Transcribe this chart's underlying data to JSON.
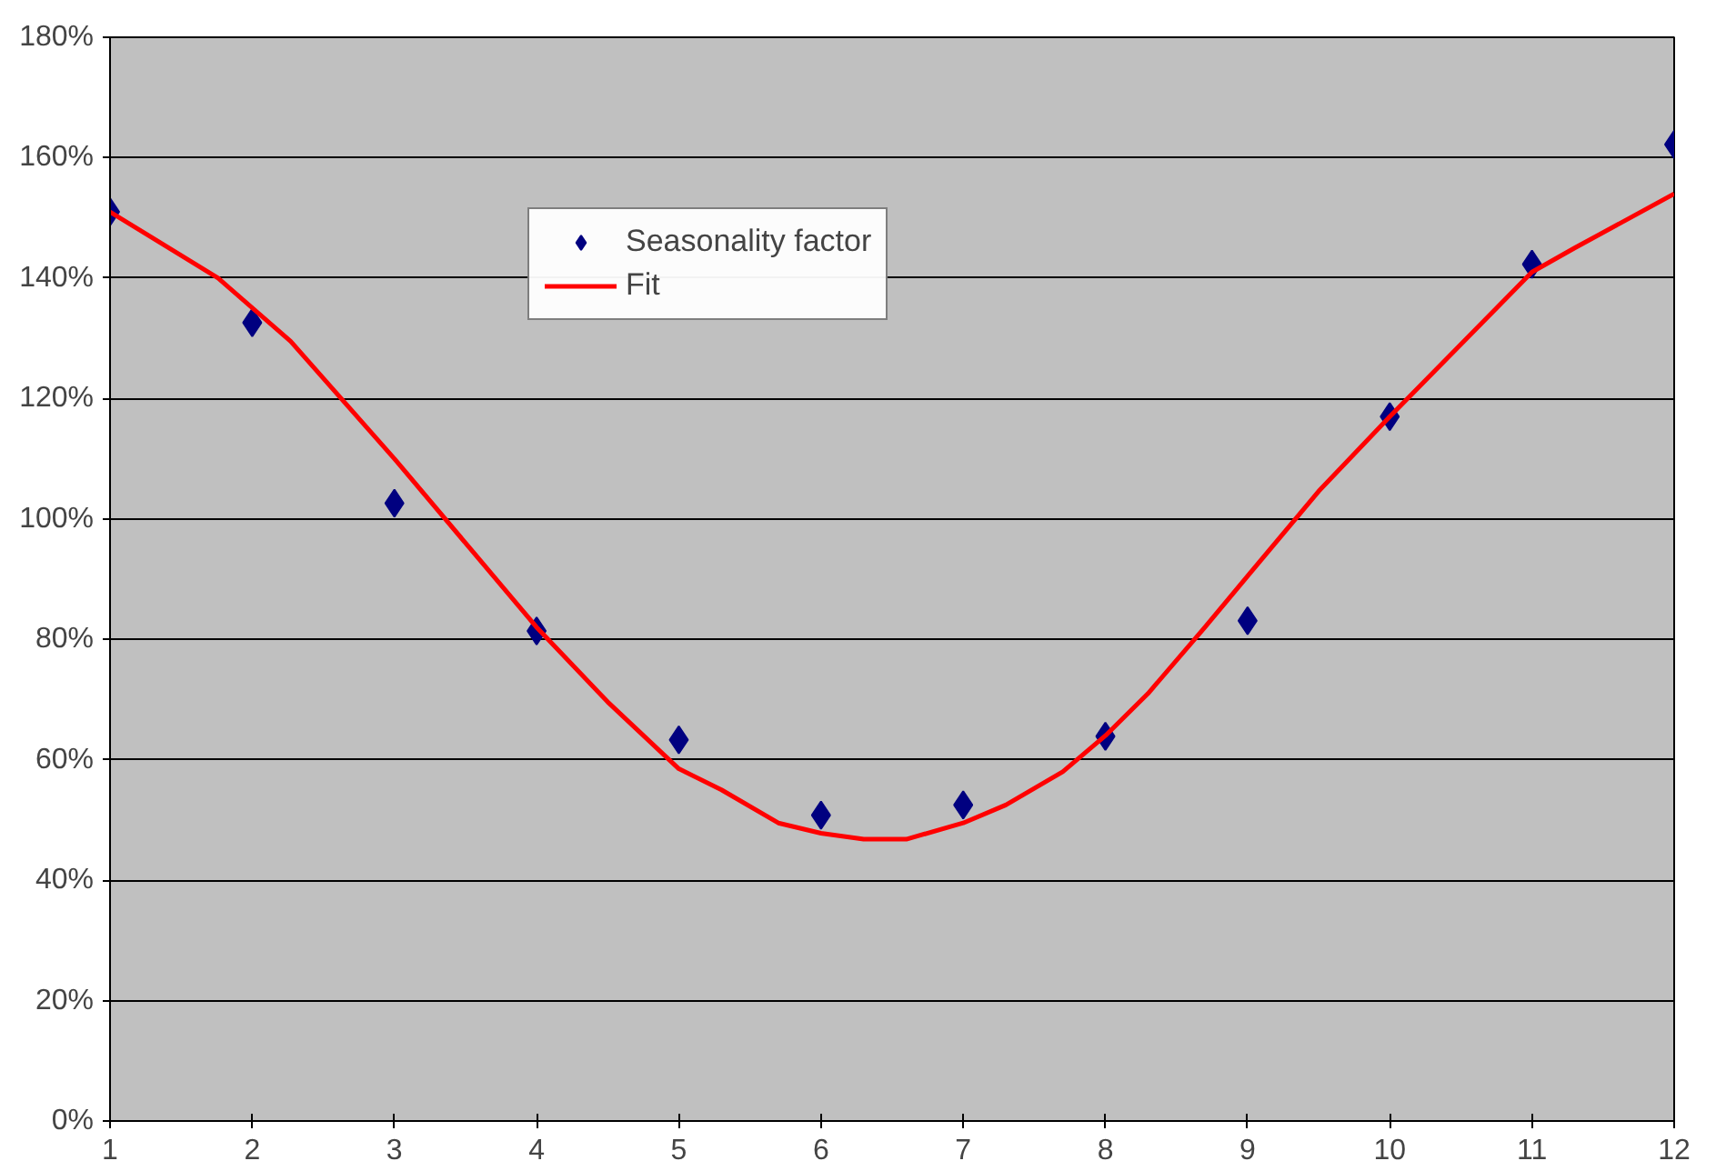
{
  "chart_data": {
    "type": "scatter",
    "xlim": [
      1,
      12
    ],
    "xticks": [
      1,
      2,
      3,
      4,
      5,
      6,
      7,
      8,
      9,
      10,
      11,
      12
    ],
    "ylim": [
      0,
      180
    ],
    "yticks": [
      {
        "value": 0,
        "label": "0%"
      },
      {
        "value": 20,
        "label": "20%"
      },
      {
        "value": 40,
        "label": "40%"
      },
      {
        "value": 60,
        "label": "60%"
      },
      {
        "value": 80,
        "label": "80%"
      },
      {
        "value": 100,
        "label": "100%"
      },
      {
        "value": 120,
        "label": "120%"
      },
      {
        "value": 140,
        "label": "140%"
      },
      {
        "value": 160,
        "label": "160%"
      },
      {
        "value": 180,
        "label": "180%"
      }
    ],
    "grid": "y",
    "legend": "top",
    "marker": "diamond",
    "series": [
      {
        "name": "Seasonality factor",
        "color": "#000080",
        "x": [
          1,
          2,
          3,
          4,
          5,
          6,
          7,
          8,
          9,
          10,
          11,
          12
        ],
        "values": [
          151,
          132.6,
          102.6,
          81.4,
          63.3,
          50.8,
          52.5,
          63.9,
          83.1,
          117,
          142.3,
          162.2
        ]
      },
      {
        "name": "Fit",
        "type": "line",
        "color": "#ff0000",
        "line_style": "solid",
        "marker": "none",
        "x": [
          1,
          1.76,
          2.27,
          3,
          4,
          4.5,
          5,
          5.3,
          5.7,
          6,
          6.3,
          6.6,
          7,
          7.3,
          7.7,
          8,
          8.3,
          8.7,
          9,
          9.5,
          10,
          10.5,
          11,
          11.3,
          12
        ],
        "values": [
          151,
          140,
          129.5,
          110,
          82,
          69.6,
          58.5,
          55,
          49.5,
          47.8,
          46.8,
          46.8,
          49.5,
          52.5,
          58,
          64,
          71,
          82,
          90.5,
          104.6,
          117,
          129,
          141,
          145,
          154
        ]
      }
    ]
  }
}
